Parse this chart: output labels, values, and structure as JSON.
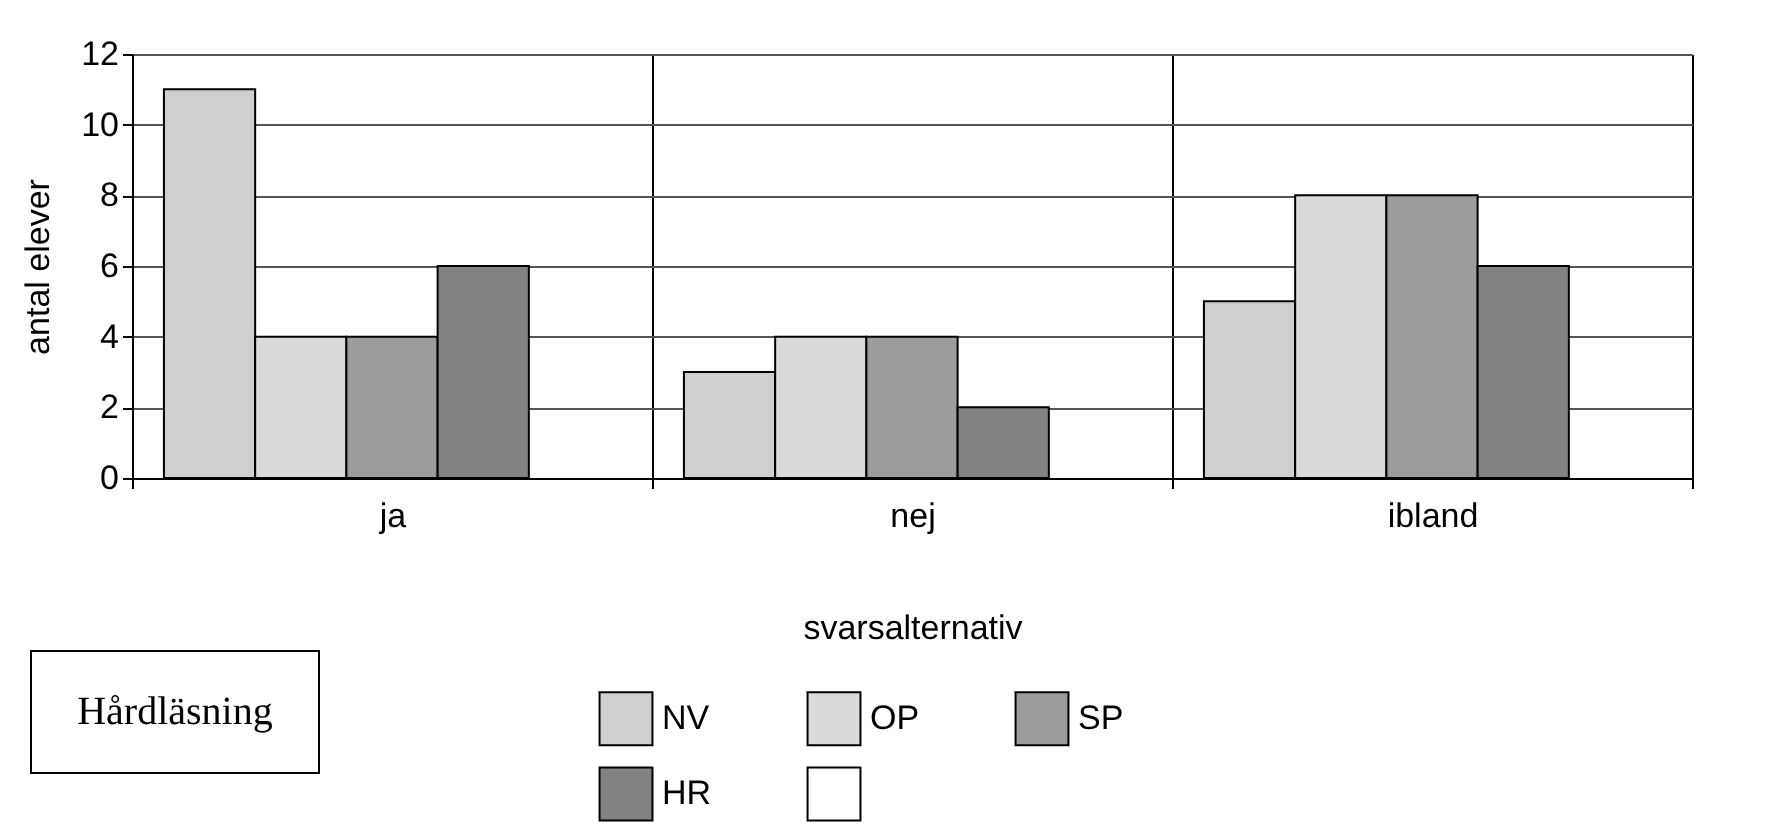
{
  "chart_data": {
    "type": "bar",
    "title": "Hårdläsning",
    "xlabel": "svarsalternativ",
    "ylabel": "antal elever",
    "categories": [
      "ja",
      "nej",
      "ibland"
    ],
    "series": [
      {
        "name": "NV",
        "color": "#cfcfcf",
        "values": [
          11,
          3,
          5
        ]
      },
      {
        "name": "OP",
        "color": "#dadada",
        "values": [
          4,
          4,
          8
        ]
      },
      {
        "name": "SP",
        "color": "#9c9c9c",
        "values": [
          4,
          4,
          8
        ]
      },
      {
        "name": "HR",
        "color": "#828282",
        "values": [
          6,
          2,
          6
        ]
      },
      {
        "color": "#ffffff",
        "values": [
          null,
          null,
          null
        ]
      }
    ],
    "ylim": [
      0,
      12
    ],
    "yticks": [
      0,
      2,
      4,
      6,
      8,
      10,
      12
    ],
    "grid": true,
    "legend": "bottom"
  }
}
